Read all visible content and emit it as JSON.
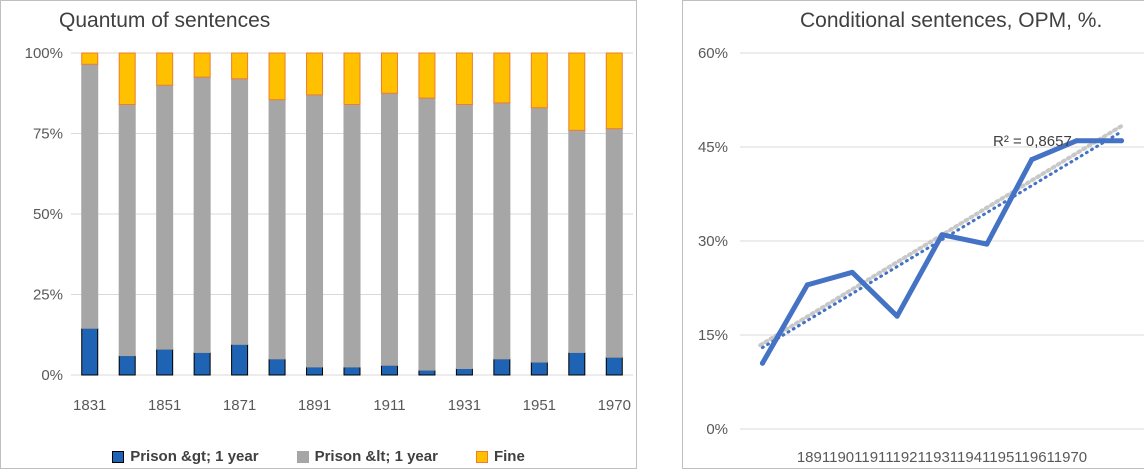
{
  "chart_data": [
    {
      "type": "bar",
      "stacked": true,
      "normalized": true,
      "title": "Quantum of sentences",
      "categories": [
        "1831",
        "1841",
        "1851",
        "1861",
        "1871",
        "1881",
        "1891",
        "1901",
        "1911",
        "1921",
        "1931",
        "1941",
        "1951",
        "1961",
        "1970"
      ],
      "x_tick_labels": [
        "1831",
        "1851",
        "1871",
        "1891",
        "1911",
        "1931",
        "1951",
        "1970"
      ],
      "y_tick_labels": [
        "0%",
        "25%",
        "50%",
        "75%",
        "100%"
      ],
      "ylim": [
        0,
        100
      ],
      "legend_position": "bottom",
      "grid": true,
      "series": [
        {
          "name": "Prison &gt; 1 year",
          "color": "#1f64b4",
          "edge": "#000000",
          "values": [
            14.5,
            6,
            8,
            7,
            9.5,
            5,
            2.5,
            2.5,
            3,
            1.5,
            2,
            5,
            4,
            7,
            5.5
          ]
        },
        {
          "name": "Prison &lt; 1 year",
          "color": "#a6a6a6",
          "edge": "#a6a6a6",
          "values": [
            82,
            78,
            82,
            85.5,
            82.5,
            80.5,
            84.5,
            81.5,
            84.5,
            84.5,
            82,
            79.5,
            79,
            69,
            71
          ]
        },
        {
          "name": "Fine",
          "color": "#ffc000",
          "edge": "#ed7d31",
          "values": [
            3.5,
            16,
            10,
            7.5,
            8,
            14.5,
            13,
            16,
            12.5,
            14,
            16,
            15.5,
            17,
            24,
            23.5
          ]
        }
      ]
    },
    {
      "type": "line",
      "title": "Conditional sentences, OPM, %.",
      "x": [
        "1891",
        "1901",
        "1911",
        "1921",
        "1931",
        "1941",
        "1951",
        "1961",
        "1970"
      ],
      "x_tick_text": "189119011911192119311941195119611970",
      "y_tick_labels": [
        "0%",
        "15%",
        "30%",
        "45%",
        "60%"
      ],
      "ylim": [
        0,
        60
      ],
      "grid": true,
      "series": [
        {
          "values": [
            10.5,
            23,
            25,
            18,
            31,
            29.5,
            43,
            46,
            46
          ],
          "color": "#4472c4"
        }
      ],
      "trendline": {
        "type": "linear",
        "color": "#4472c4",
        "style": "dotted"
      },
      "secondary_trendline": {
        "type": "linear",
        "color": "#c8c8c8",
        "style": "dotted"
      },
      "annotation": "R² = 0,8657"
    }
  ]
}
